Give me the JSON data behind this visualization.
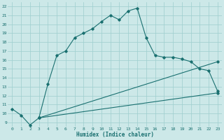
{
  "xlabel": "Humidex (Indice chaleur)",
  "bg_color": "#cce8e8",
  "grid_color": "#9ecece",
  "line_color": "#1a7070",
  "xlim": [
    -0.5,
    23.5
  ],
  "ylim": [
    8.5,
    22.5
  ],
  "xticks": [
    0,
    1,
    2,
    3,
    4,
    5,
    6,
    7,
    8,
    9,
    10,
    11,
    12,
    13,
    14,
    15,
    16,
    17,
    18,
    19,
    20,
    21,
    22,
    23
  ],
  "yticks": [
    9,
    10,
    11,
    12,
    13,
    14,
    15,
    16,
    17,
    18,
    19,
    20,
    21,
    22
  ],
  "curve1_x": [
    0,
    1,
    2,
    3,
    4,
    5,
    6,
    7,
    8,
    9,
    10,
    11,
    12,
    13,
    14,
    15,
    16,
    17,
    18,
    19,
    20,
    21,
    22,
    23
  ],
  "curve1_y": [
    10.5,
    9.8,
    8.7,
    9.5,
    13.3,
    16.5,
    17.0,
    18.5,
    19.0,
    19.5,
    20.3,
    21.0,
    20.5,
    21.5,
    21.8,
    18.5,
    16.5,
    16.3,
    16.3,
    16.1,
    15.8,
    15.0,
    14.8,
    12.5
  ],
  "curve2_x": [
    3,
    23
  ],
  "curve2_y": [
    9.5,
    15.8
  ],
  "curve3_x": [
    3,
    23
  ],
  "curve3_y": [
    9.5,
    12.3
  ]
}
